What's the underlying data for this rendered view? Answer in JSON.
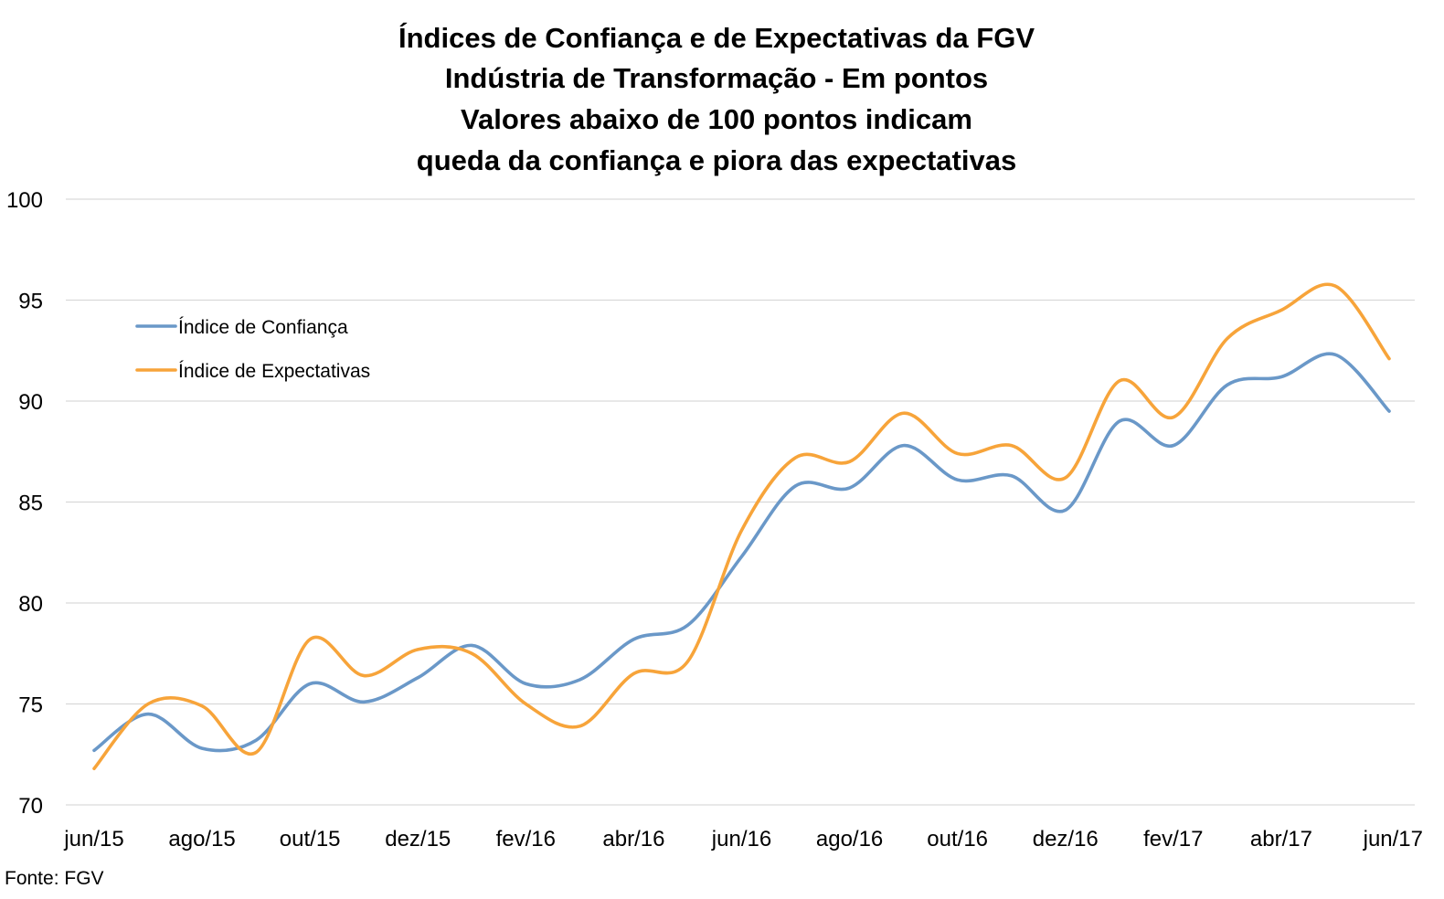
{
  "chart_data": {
    "type": "line",
    "title_lines": [
      "Índices de Confiança e de Expectativas da FGV",
      "Indústria de Transformação - Em pontos",
      "Valores abaixo de 100 pontos indicam",
      "queda da confiança e piora das expectativas"
    ],
    "xlabel": "",
    "ylabel": "",
    "ylim": [
      70,
      100
    ],
    "yticks": [
      70,
      75,
      80,
      85,
      90,
      95,
      100
    ],
    "categories": [
      "jun/15",
      "jul/15",
      "ago/15",
      "set/15",
      "out/15",
      "nov/15",
      "dez/15",
      "jan/16",
      "fev/16",
      "mar/16",
      "abr/16",
      "mai/16",
      "jun/16",
      "jul/16",
      "ago/16",
      "set/16",
      "out/16",
      "nov/16",
      "dez/16",
      "jan/17",
      "fev/17",
      "mar/17",
      "abr/17",
      "mai/17",
      "jun/17"
    ],
    "xtick_labels": [
      "jun/15",
      "ago/15",
      "out/15",
      "dez/15",
      "fev/16",
      "abr/16",
      "jun/16",
      "ago/16",
      "out/16",
      "dez/16",
      "fev/17",
      "abr/17",
      "jun/17"
    ],
    "xtick_indices": [
      0,
      2,
      4,
      6,
      8,
      10,
      12,
      14,
      16,
      18,
      20,
      22,
      24
    ],
    "series": [
      {
        "name": "Índice de Confiança",
        "color": "#6a98c8",
        "values": [
          72.7,
          74.5,
          72.8,
          73.2,
          76.0,
          75.1,
          76.3,
          77.9,
          76.0,
          76.2,
          78.2,
          78.9,
          82.3,
          85.8,
          85.7,
          87.8,
          86.1,
          86.3,
          84.6,
          89.0,
          87.8,
          90.8,
          91.2,
          92.3,
          89.5
        ]
      },
      {
        "name": "Índice de Expectativas",
        "color": "#f7a43a",
        "values": [
          71.8,
          75.0,
          74.9,
          72.6,
          78.2,
          76.4,
          77.7,
          77.5,
          75.0,
          73.9,
          76.5,
          77.1,
          83.6,
          87.2,
          87.0,
          89.4,
          87.4,
          87.8,
          86.2,
          91.0,
          89.2,
          93.1,
          94.5,
          95.7,
          92.1
        ]
      }
    ],
    "legend_position": "upper-left, inside plot",
    "grid": true,
    "source": "Fonte: FGV"
  }
}
